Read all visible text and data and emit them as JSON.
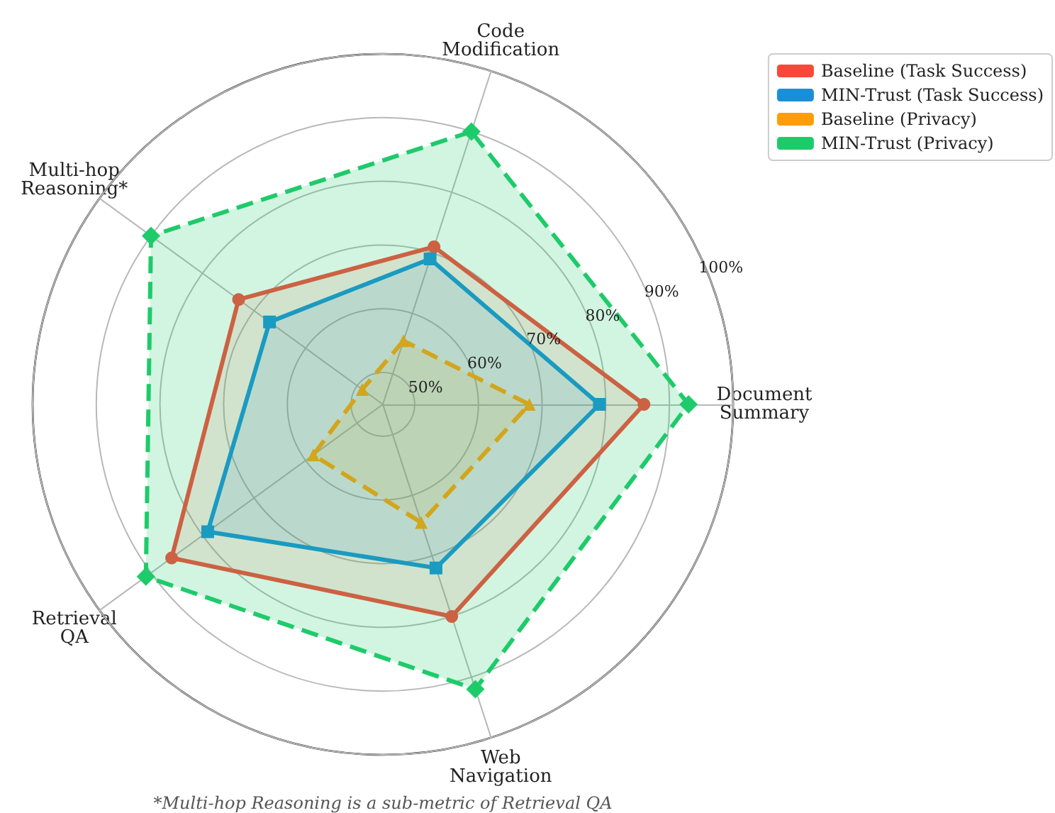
{
  "chart_data": {
    "type": "radar",
    "categories": [
      "Code Modification",
      "Document Summary",
      "Web Navigation",
      "Retrieval QA",
      "Multi-hop Reasoning*"
    ],
    "series": [
      {
        "name": "Baseline (Task Success)",
        "color": "#f8483a",
        "values": [
          71,
          86,
          80,
          86,
          73
        ],
        "marker": "circle",
        "line_style": "solid"
      },
      {
        "name": "MIN-Trust (Task Success)",
        "color": "#1a8fd8",
        "values": [
          69,
          79,
          72,
          79,
          67
        ],
        "marker": "square",
        "line_style": "solid"
      },
      {
        "name": "Baseline (Privacy)",
        "color": "#ff9d0a",
        "values": [
          55.5,
          68,
          64.5,
          58.5,
          49
        ],
        "marker": "triangle",
        "line_style": "dashed"
      },
      {
        "name": "MIN-Trust (Privacy)",
        "color": "#1ecb6b",
        "values": [
          90,
          93,
          92,
          91,
          90
        ],
        "marker": "diamond",
        "line_style": "dashed"
      }
    ],
    "ylim": [
      45,
      100
    ],
    "yticks": [
      {
        "value": 50,
        "label": "50%"
      },
      {
        "value": 60,
        "label": "60%"
      },
      {
        "value": 70,
        "label": "70%"
      },
      {
        "value": 80,
        "label": "80%"
      },
      {
        "value": 90,
        "label": "90%"
      },
      {
        "value": 100,
        "label": "100%"
      }
    ],
    "grid": true,
    "legend": "top right",
    "annotations": [
      "*Multi-hop Reasoning is a sub-metric of Retrieval QA"
    ]
  }
}
